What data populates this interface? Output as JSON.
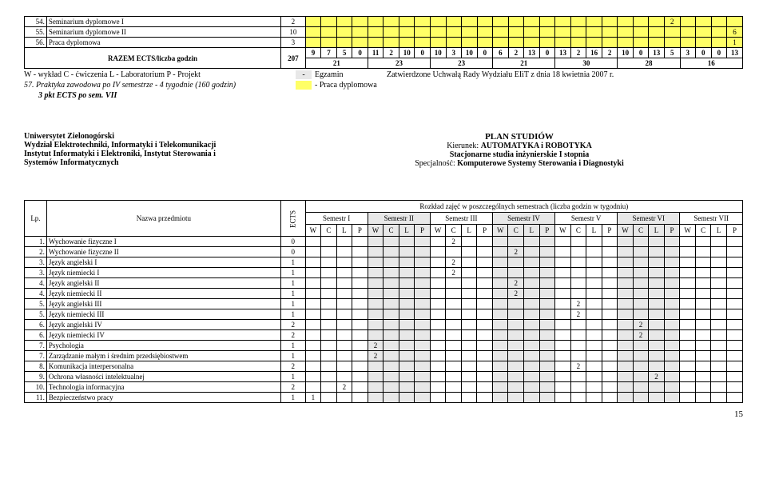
{
  "top_rows": [
    {
      "n": "54.",
      "name": "Seminarium dyplomowe I",
      "ects": "2",
      "yellow_cells": {
        "last_group_last": "2"
      }
    },
    {
      "n": "55.",
      "name": "Seminarium dyplomowe II",
      "ects": "10",
      "yellow_cells": {
        "very_last": "6"
      }
    },
    {
      "n": "56.",
      "name": "Praca dyplomowa",
      "ects": "3",
      "yellow_cells": {
        "very_last": "1"
      }
    }
  ],
  "razem_label": "RAZEM ECTS/liczba godzin",
  "razem_ects": "207",
  "razem_vals": [
    "9",
    "7",
    "5",
    "0",
    "11",
    "2",
    "10",
    "0",
    "10",
    "3",
    "10",
    "0",
    "6",
    "2",
    "13",
    "0",
    "13",
    "2",
    "16",
    "2",
    "10",
    "0",
    "13",
    "5",
    "3",
    "0",
    "0",
    "13"
  ],
  "razem_sums": [
    "21",
    "23",
    "23",
    "21",
    "30",
    "28",
    "16"
  ],
  "legend": {
    "left1": "W - wykład  C - ćwiczenia  L - Laboratorium  P - Projekt",
    "mid1a": "-",
    "mid1b": "Egzamin",
    "right1": "Zatwierdzone Uchwałą Rady Wydziału EIiT z dnia 18 kwietnia 2007 r.",
    "left2": "57.  Praktyka zawodowa po IV semestrze - 4 tygodnie (160 godzin)",
    "mid2": "- Praca dyplomowa",
    "left3": "3 pkt ECTS po sem. VII"
  },
  "uni": {
    "l1": "Uniwersytet Zielonogórski",
    "l2": "Wydział Elektrotechniki, Informatyki i Telekomunikacji",
    "l3": "Instytut Informatyki i Elektroniki, Instytut Sterowania i",
    "l4": "Systemów Informatycznych"
  },
  "plan": {
    "title": "PLAN STUDIÓW",
    "kier": "Kierunek: AUTOMATYKA i ROBOTYKA",
    "stac": "Stacjonarne studia inżynierskie I stopnia",
    "spec": "Specjalność: Komputerowe Systemy Sterowania i Diagnostyki"
  },
  "table2": {
    "rozklad": "Rozkład zajęć w poszczególnych semestrach (liczba godzin w tygodniu)",
    "lp": "Lp.",
    "nazwa": "Nazwa przedmiotu",
    "ects": "ECTS",
    "sems": [
      "Semestr I",
      "Semestr II",
      "Semestr III",
      "Semestr IV",
      "Semestr V",
      "Semestr VI",
      "Semestr VII"
    ],
    "wclp": [
      "W",
      "C",
      "L",
      "P"
    ]
  },
  "rows2": [
    {
      "n": "1.",
      "name": "Wychowanie fizyczne I",
      "ects": "0",
      "mark": {
        "sem": 3,
        "col": 2,
        "val": "2"
      }
    },
    {
      "n": "2.",
      "name": "Wychowanie fizyczne II",
      "ects": "0",
      "mark": {
        "sem": 4,
        "col": 2,
        "val": "2"
      }
    },
    {
      "n": "3.",
      "name": "Język angielski I",
      "ects": "1",
      "mark": {
        "sem": 3,
        "col": 2,
        "val": "2"
      }
    },
    {
      "n": "3.",
      "name": "Język niemiecki I",
      "ects": "1",
      "mark": {
        "sem": 3,
        "col": 2,
        "val": "2"
      }
    },
    {
      "n": "4.",
      "name": "Język angielski II",
      "ects": "1",
      "mark": {
        "sem": 4,
        "col": 2,
        "val": "2"
      }
    },
    {
      "n": "4.",
      "name": "Język niemiecki II",
      "ects": "1",
      "mark": {
        "sem": 4,
        "col": 2,
        "val": "2"
      }
    },
    {
      "n": "5.",
      "name": "Język angielski  III",
      "ects": "1",
      "mark": {
        "sem": 5,
        "col": 2,
        "val": "2"
      }
    },
    {
      "n": "5.",
      "name": "Język niemiecki  III",
      "ects": "1",
      "mark": {
        "sem": 5,
        "col": 2,
        "val": "2"
      }
    },
    {
      "n": "6.",
      "name": "Język angielski IV",
      "ects": "2",
      "mark": {
        "sem": 6,
        "col": 2,
        "val": "2"
      }
    },
    {
      "n": "6.",
      "name": "Język niemiecki IV",
      "ects": "2",
      "mark": {
        "sem": 6,
        "col": 2,
        "val": "2"
      }
    },
    {
      "n": "7.",
      "name": "Psychologia",
      "ects": "1",
      "mark": {
        "sem": 2,
        "col": 1,
        "val": "2"
      }
    },
    {
      "n": "7.",
      "name": "Zarządzanie małym i średnim przedsiębiostwem",
      "ects": "1",
      "mark": {
        "sem": 2,
        "col": 1,
        "val": "2"
      }
    },
    {
      "n": "8.",
      "name": "Komunikacja interpersonalna",
      "ects": "2",
      "mark": {
        "sem": 5,
        "col": 2,
        "val": "2"
      }
    },
    {
      "n": "9.",
      "name": "Ochrona własności intelektualnej",
      "ects": "1",
      "mark": {
        "sem": 6,
        "col": 3,
        "val": "2"
      }
    },
    {
      "n": "10.",
      "name": "Technologia informacyjna",
      "ects": "2",
      "mark": {
        "sem": 1,
        "col": 3,
        "val": "2"
      }
    },
    {
      "n": "11.",
      "name": "Bezpieczeństwo pracy",
      "ects": "1",
      "mark": {
        "sem": 1,
        "col": 1,
        "val": "1"
      }
    }
  ],
  "page": "15"
}
